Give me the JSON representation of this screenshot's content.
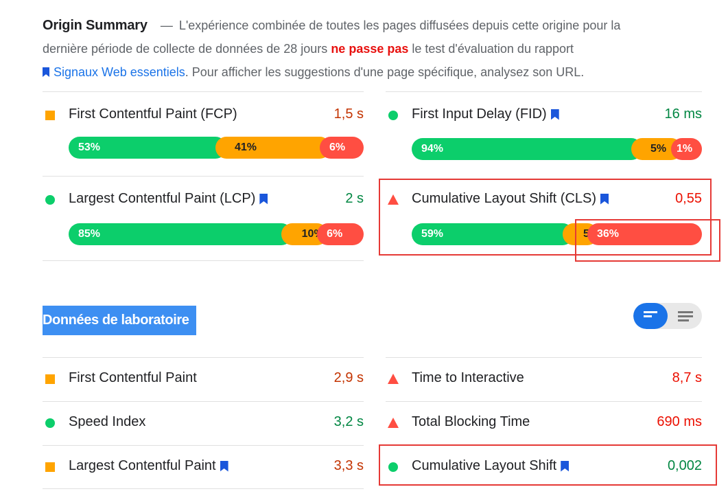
{
  "origin_summary": {
    "title": "Origin Summary",
    "dash": "—",
    "text_1": "L'expérience combinée de toutes les pages diffusées depuis cette origine pour la dernière période de collecte de données de 28 jours",
    "status": "ne passe pas",
    "text_2": "le test d'évaluation du rapport",
    "link": "Signaux Web essentiels",
    "text_3": ". Pour afficher les suggestions d'une page spécifique, analysez son URL."
  },
  "field_metrics": [
    {
      "label": "First Contentful Paint (FCP)",
      "value": "1,5 s",
      "indicator": "square-orange",
      "bookmark": false,
      "distribution": {
        "fast": "53%",
        "average": "41%",
        "slow": "6%"
      },
      "fractions": [
        0.53,
        0.41,
        0.06
      ]
    },
    {
      "label": "First Input Delay (FID)",
      "value": "16 ms",
      "indicator": "circle-green",
      "bookmark": true,
      "distribution": {
        "fast": "94%",
        "average": "5%",
        "slow": "1%"
      },
      "fractions": [
        0.94,
        0.05,
        0.01
      ]
    },
    {
      "label": "Largest Contentful Paint (LCP)",
      "value": "2 s",
      "indicator": "circle-green",
      "bookmark": true,
      "distribution": {
        "fast": "85%",
        "average": "10%",
        "slow": "6%"
      },
      "fractions": [
        0.85,
        0.1,
        0.06
      ]
    },
    {
      "label": "Cumulative Layout Shift (CLS)",
      "value": "0,55",
      "indicator": "triangle-red",
      "bookmark": true,
      "distribution": {
        "fast": "59%",
        "average": "5%",
        "slow": "36%"
      },
      "fractions": [
        0.59,
        0.05,
        0.36
      ]
    }
  ],
  "lab": {
    "title": "Données de laboratoire",
    "metrics": [
      {
        "label": "First Contentful Paint",
        "value": "2,9 s",
        "indicator": "square-orange",
        "bookmark": false
      },
      {
        "label": "Time to Interactive",
        "value": "8,7 s",
        "indicator": "triangle-red",
        "bookmark": false
      },
      {
        "label": "Speed Index",
        "value": "3,2 s",
        "indicator": "circle-green",
        "bookmark": false
      },
      {
        "label": "Total Blocking Time",
        "value": "690 ms",
        "indicator": "triangle-red",
        "bookmark": false
      },
      {
        "label": "Largest Contentful Paint",
        "value": "3,3 s",
        "indicator": "square-orange",
        "bookmark": true
      },
      {
        "label": "Cumulative Layout Shift",
        "value": "0,002",
        "indicator": "circle-green",
        "bookmark": true
      }
    ]
  },
  "colors": {
    "fast": "#0cce6b",
    "average": "#ffa400",
    "slow": "#ff4e42",
    "link": "#1a73e8",
    "fail_text": "#e8110f",
    "highlight_box": "#e53935",
    "lab_title_bg": "#3d8ff2"
  }
}
